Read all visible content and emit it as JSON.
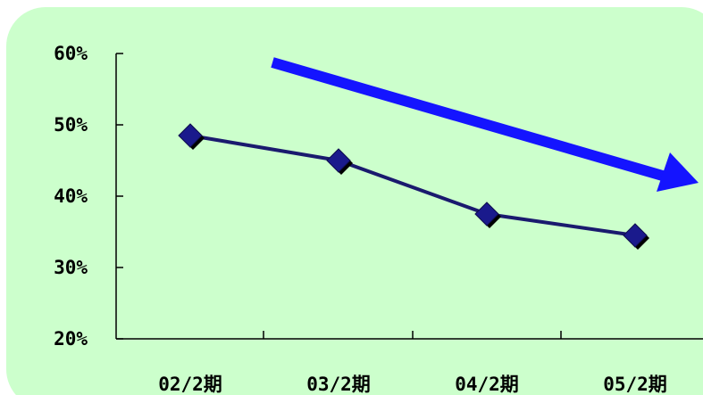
{
  "chart_data": {
    "type": "line",
    "categories": [
      "02/2期",
      "03/2期",
      "04/2期",
      "05/2期"
    ],
    "series": [
      {
        "values": [
          48.5,
          45.0,
          37.5,
          34.5
        ]
      }
    ],
    "y_ticks": [
      "20%",
      "30%",
      "40%",
      "50%",
      "60%"
    ],
    "y_tick_values": [
      20,
      30,
      40,
      50,
      60
    ],
    "ylim": [
      20,
      60
    ],
    "grid": false,
    "legend": "none",
    "annotations": [
      {
        "kind": "arrow",
        "meaning": "downward-trend"
      }
    ]
  },
  "colors": {
    "panel_background": "#ccffcc",
    "series_line": "#1a1a6e",
    "marker_fill": "#1a1a8c",
    "marker_shadow": "#000000",
    "trend_arrow": "#1414ff",
    "axis": "#000000"
  }
}
